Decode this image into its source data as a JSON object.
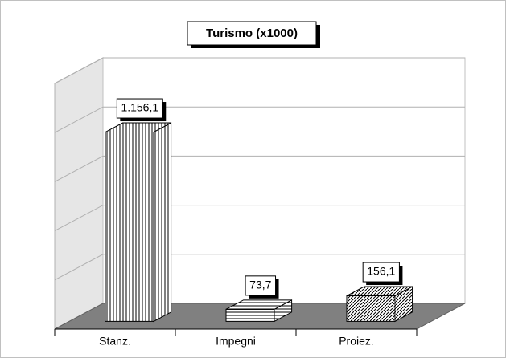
{
  "chart_data": {
    "type": "bar3d",
    "title": "Turismo (x1000)",
    "categories": [
      "Stanz.",
      "Impegni",
      "Proiez."
    ],
    "values": [
      1156.1,
      73.7,
      156.1
    ],
    "value_labels": [
      "1.156,1",
      "73,7",
      "156,1"
    ],
    "ylim": [
      0,
      1500
    ],
    "yticks": [
      0,
      300,
      600,
      900,
      1200,
      1500
    ],
    "grid": true
  }
}
